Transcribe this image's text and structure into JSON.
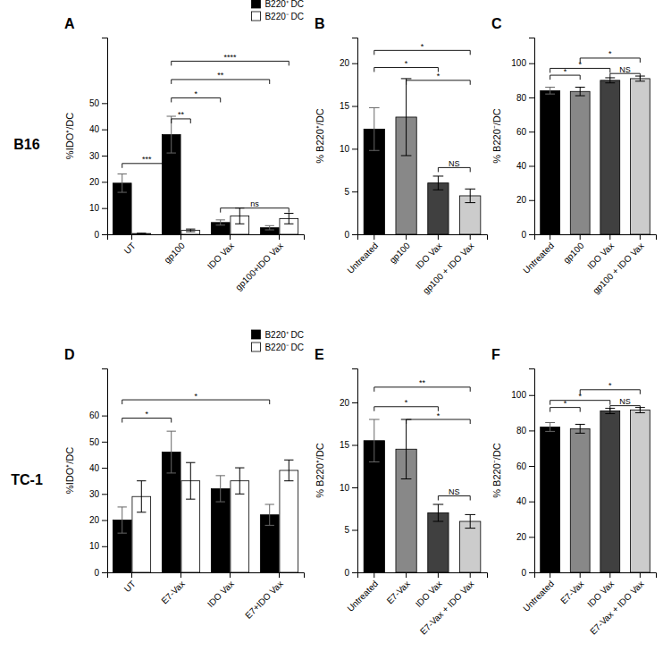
{
  "chart_data": [
    {
      "type": "bar",
      "title": "A",
      "categories": [
        "UT",
        "gp100",
        "IDO Vax",
        "gp100+IDO Vax"
      ],
      "series": [
        {
          "name": "B220⁺ DC",
          "color": "#000000",
          "values": [
            19.5,
            38.0,
            4.5,
            2.5
          ],
          "errors": [
            3.5,
            7.0,
            1.0,
            0.8
          ]
        },
        {
          "name": "B220⁻ DC",
          "color": "#ffffff",
          "values": [
            0.3,
            1.5,
            7.0,
            6.0
          ],
          "errors": [
            0.1,
            0.5,
            3.0,
            2.0
          ]
        }
      ],
      "ylabel": "%IDO⁺/DC",
      "ylim": [
        0,
        75
      ],
      "yticks": [
        0,
        10,
        20,
        30,
        40,
        50
      ],
      "legend": "upper right",
      "annotations": [
        {
          "text": "B16"
        },
        {
          "text": "***",
          "from": {
            "category": "UT",
            "series": "B220⁺ DC"
          },
          "to": {
            "category": "gp100",
            "series": "B220⁺ DC"
          },
          "y": 27
        },
        {
          "text": "**",
          "from": {
            "category": "gp100",
            "series": "B220⁺ DC"
          },
          "to": {
            "category": "gp100",
            "series": "B220⁻ DC"
          },
          "y": 44
        },
        {
          "text": "ns",
          "from": {
            "category": "IDO Vax",
            "series": "B220⁺ DC"
          },
          "to": {
            "category": "gp100+IDO Vax",
            "series": "B220⁻ DC"
          },
          "y": 10.0
        },
        {
          "text": "*",
          "from": {
            "category": "gp100",
            "series": "B220⁺ DC"
          },
          "to": {
            "category": "IDO Vax",
            "series": "B220⁺ DC"
          },
          "y": 52
        },
        {
          "text": "**",
          "from": {
            "category": "gp100",
            "series": "B220⁺ DC"
          },
          "to": {
            "category": "gp100+IDO Vax",
            "series": "B220⁺ DC"
          },
          "y": 59
        },
        {
          "text": "****",
          "from": {
            "category": "gp100",
            "series": "B220⁺ DC"
          },
          "to": {
            "category": "gp100+IDO Vax",
            "series": "B220⁻ DC"
          },
          "y": 66
        }
      ]
    },
    {
      "type": "bar",
      "title": "B",
      "categories": [
        "Untreated",
        "gp100",
        "IDO Vax",
        "gp100 + IDO Vax"
      ],
      "values": [
        12.3,
        13.7,
        6.0,
        4.5
      ],
      "errors": [
        2.5,
        4.5,
        0.8,
        0.8
      ],
      "colors": [
        "#000000",
        "#888888",
        "#404040",
        "#cccccc"
      ],
      "ylabel": "% B220⁺/DC",
      "ylim": [
        0,
        23
      ],
      "yticks": [
        0,
        5,
        10,
        15,
        20
      ],
      "annotations": [
        {
          "text": "*",
          "from": {
            "category": "Untreated"
          },
          "to": {
            "category": "IDO Vax"
          },
          "y": 19.5
        },
        {
          "text": "*",
          "from": {
            "category": "Untreated"
          },
          "to": {
            "category": "gp100 + IDO Vax"
          },
          "y": 21.5
        },
        {
          "text": "*",
          "from": {
            "category": "gp100"
          },
          "to": {
            "category": "gp100 + IDO Vax"
          },
          "y": 18.0
        },
        {
          "text": "NS",
          "from": {
            "category": "IDO Vax"
          },
          "to": {
            "category": "gp100 + IDO Vax"
          },
          "y": 7.8
        }
      ]
    },
    {
      "type": "bar",
      "title": "C",
      "categories": [
        "Untreated",
        "gp100",
        "IDO Vax",
        "gp100 + IDO Vax"
      ],
      "values": [
        84.0,
        83.5,
        90.0,
        91.0
      ],
      "errors": [
        2.0,
        2.5,
        1.5,
        1.5
      ],
      "colors": [
        "#000000",
        "#888888",
        "#404040",
        "#cccccc"
      ],
      "ylabel": "% B220⁻/DC",
      "ylim": [
        0,
        115
      ],
      "yticks": [
        0,
        20,
        40,
        60,
        80,
        100
      ],
      "annotations": [
        {
          "text": "*",
          "from": {
            "category": "Untreated"
          },
          "to": {
            "category": "IDO Vax"
          },
          "y": 97
        },
        {
          "text": "*",
          "from": {
            "category": "gp100"
          },
          "to": {
            "category": "gp100 + IDO Vax"
          },
          "y": 103
        },
        {
          "text": "*",
          "from": {
            "category": "Untreated"
          },
          "to": {
            "category": "gp100"
          },
          "y": 93
        },
        {
          "text": "NS",
          "from": {
            "category": "IDO Vax"
          },
          "to": {
            "category": "gp100 + IDO Vax"
          },
          "y": 94
        }
      ]
    },
    {
      "type": "bar",
      "title": "D",
      "categories": [
        "UT",
        "E7-Vax",
        "IDO Vax",
        "E7+IDO Vax"
      ],
      "series": [
        {
          "name": "B220⁺ DC",
          "color": "#000000",
          "values": [
            20.0,
            46.0,
            32.0,
            22.0
          ],
          "errors": [
            5.0,
            8.0,
            5.0,
            4.0
          ]
        },
        {
          "name": "B220⁻ DC",
          "color": "#ffffff",
          "values": [
            29.0,
            35.0,
            35.0,
            39.0
          ],
          "errors": [
            6.0,
            7.0,
            5.0,
            4.0
          ]
        }
      ],
      "ylabel": "%IDO⁺/DC",
      "ylim": [
        0,
        78
      ],
      "yticks": [
        0,
        10,
        20,
        30,
        40,
        50,
        60
      ],
      "legend": "upper right",
      "annotations": [
        {
          "text": "TC-1"
        },
        {
          "text": "*",
          "from": {
            "category": "UT",
            "series": "B220⁺ DC"
          },
          "to": {
            "category": "E7-Vax",
            "series": "B220⁺ DC"
          },
          "y": 59
        },
        {
          "text": "*",
          "from": {
            "category": "UT",
            "series": "B220⁺ DC"
          },
          "to": {
            "category": "E7+IDO Vax",
            "series": "B220⁺ DC"
          },
          "y": 66
        }
      ]
    },
    {
      "type": "bar",
      "title": "E",
      "categories": [
        "Untreated",
        "E7-Vax",
        "IDO Vax",
        "E7-Vax + IDO Vax"
      ],
      "values": [
        15.5,
        14.5,
        7.0,
        6.0
      ],
      "errors": [
        2.5,
        3.5,
        1.0,
        0.8
      ],
      "colors": [
        "#000000",
        "#888888",
        "#404040",
        "#cccccc"
      ],
      "ylabel": "% B220⁺/DC",
      "ylim": [
        0,
        24
      ],
      "yticks": [
        0,
        5,
        10,
        15,
        20
      ],
      "annotations": [
        {
          "text": "*",
          "from": {
            "category": "Untreated"
          },
          "to": {
            "category": "IDO Vax"
          },
          "y": 19.5
        },
        {
          "text": "**",
          "from": {
            "category": "Untreated"
          },
          "to": {
            "category": "E7-Vax + IDO Vax"
          },
          "y": 21.8
        },
        {
          "text": "*",
          "from": {
            "category": "E7-Vax"
          },
          "to": {
            "category": "E7-Vax + IDO Vax"
          },
          "y": 18.0
        },
        {
          "text": "NS",
          "from": {
            "category": "IDO Vax"
          },
          "to": {
            "category": "E7-Vax + IDO Vax"
          },
          "y": 9.0
        }
      ]
    },
    {
      "type": "bar",
      "title": "F",
      "categories": [
        "Untreated",
        "E7-Vax",
        "IDO Vax",
        "E7-Vax + IDO Vax"
      ],
      "values": [
        82.0,
        81.0,
        91.0,
        91.5
      ],
      "errors": [
        2.5,
        2.5,
        1.5,
        1.5
      ],
      "colors": [
        "#000000",
        "#888888",
        "#404040",
        "#cccccc"
      ],
      "ylabel": "% B220⁻/DC",
      "ylim": [
        0,
        115
      ],
      "yticks": [
        0,
        20,
        40,
        60,
        80,
        100
      ],
      "annotations": [
        {
          "text": "*",
          "from": {
            "category": "Untreated"
          },
          "to": {
            "category": "IDO Vax"
          },
          "y": 97
        },
        {
          "text": "*",
          "from": {
            "category": "E7-Vax"
          },
          "to": {
            "category": "E7-Vax + IDO Vax"
          },
          "y": 103
        },
        {
          "text": "*",
          "from": {
            "category": "Untreated"
          },
          "to": {
            "category": "E7-Vax"
          },
          "y": 93
        },
        {
          "text": "NS",
          "from": {
            "category": "IDO Vax"
          },
          "to": {
            "category": "E7-Vax + IDO Vax"
          },
          "y": 94
        }
      ]
    }
  ]
}
